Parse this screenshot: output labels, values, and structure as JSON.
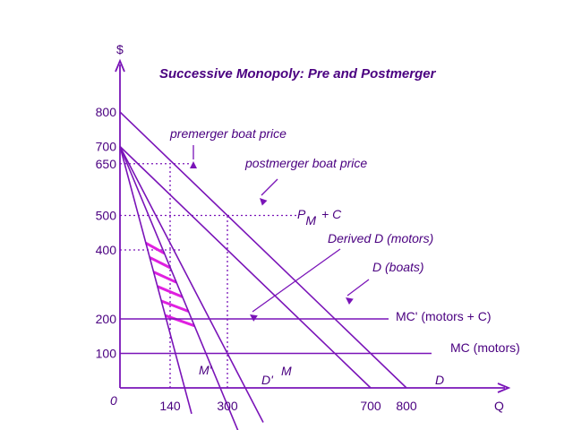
{
  "chart_data": {
    "type": "line",
    "title": "Successive Monopoly: Pre and Postmerger",
    "ylabel": "$",
    "xlabel": "Q",
    "origin_label": "0",
    "xlim": [
      0,
      900
    ],
    "ylim": [
      0,
      900
    ],
    "x_ticks": [
      {
        "value": 140,
        "label": "140"
      },
      {
        "value": 300,
        "label": "300"
      },
      {
        "value": 700,
        "label": "700"
      },
      {
        "value": 800,
        "label": "800"
      }
    ],
    "y_ticks": [
      {
        "value": 800,
        "label": "800"
      },
      {
        "value": 700,
        "label": "700"
      },
      {
        "value": 650,
        "label": "650"
      },
      {
        "value": 500,
        "label": "500"
      },
      {
        "value": 400,
        "label": "400"
      },
      {
        "value": 200,
        "label": "200"
      },
      {
        "value": 100,
        "label": "100"
      }
    ],
    "series": [
      {
        "key": "D",
        "name": "D",
        "legend": "D (boats)",
        "points": [
          [
            0,
            800
          ],
          [
            800,
            0
          ]
        ]
      },
      {
        "key": "Dm",
        "name": "Derived D (motors)",
        "points": [
          [
            0,
            700
          ],
          [
            700,
            0
          ]
        ]
      },
      {
        "key": "M",
        "name": "M",
        "points": [
          [
            0,
            700
          ],
          [
            400,
            -100
          ]
        ]
      },
      {
        "key": "Dp",
        "name": "D'",
        "points": [
          [
            0,
            700
          ],
          [
            330,
            -125
          ]
        ]
      },
      {
        "key": "Mp",
        "name": "M'",
        "points": [
          [
            0,
            700
          ],
          [
            200,
            -75
          ]
        ]
      },
      {
        "key": "MCp",
        "name": "MC' (motors + C)",
        "points": [
          [
            0,
            200
          ],
          [
            750,
            200
          ]
        ]
      },
      {
        "key": "MC",
        "name": "MC (motors)",
        "points": [
          [
            0,
            100
          ],
          [
            870,
            100
          ]
        ]
      }
    ],
    "guides": [
      {
        "points": [
          [
            140,
            0
          ],
          [
            140,
            650
          ]
        ]
      },
      {
        "points": [
          [
            0,
            650
          ],
          [
            200,
            650
          ]
        ]
      },
      {
        "points": [
          [
            300,
            0
          ],
          [
            300,
            500
          ]
        ]
      },
      {
        "points": [
          [
            0,
            500
          ],
          [
            500,
            500
          ]
        ]
      },
      {
        "points": [
          [
            0,
            400
          ],
          [
            175,
            400
          ]
        ]
      }
    ],
    "annotations": {
      "premerger": "premerger boat price",
      "postmerger": "postmerger boat price",
      "pm_p": "P",
      "pm_sub": "M",
      "pm_rest": "+ C"
    },
    "colors": {
      "line": "#7a14b8",
      "text": "#4a0080",
      "hatch": "#e020e0"
    }
  }
}
